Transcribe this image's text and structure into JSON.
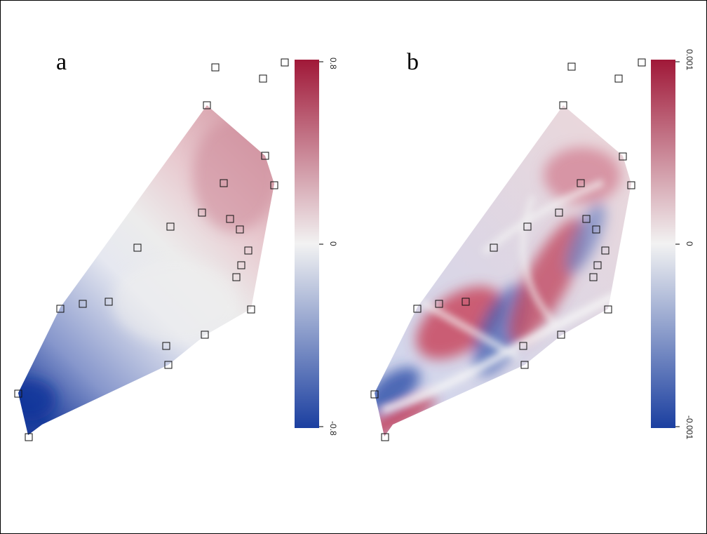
{
  "chart_data": [
    {
      "type": "heatmap",
      "panel": "a",
      "colorbar": {
        "min": -0.8,
        "mid": 0,
        "max": 0.8,
        "tick_labels": [
          "-0.8",
          "0",
          "0.8"
        ],
        "colors": [
          "#1b3fa0",
          "#f2f2f2",
          "#a01838"
        ]
      }
    },
    {
      "type": "heatmap",
      "panel": "b",
      "colorbar": {
        "min": -0.001,
        "mid": 0,
        "max": 0.001,
        "tick_labels": [
          "-0.001",
          "0",
          "0.001"
        ],
        "colors": [
          "#1b3fa0",
          "#f2f2f2",
          "#a01838"
        ]
      }
    }
  ],
  "labels": {
    "a": "a",
    "b": "b"
  },
  "colors": {
    "low": "#1b3fa0",
    "mid": "#f2f2f2",
    "high": "#a01838"
  }
}
